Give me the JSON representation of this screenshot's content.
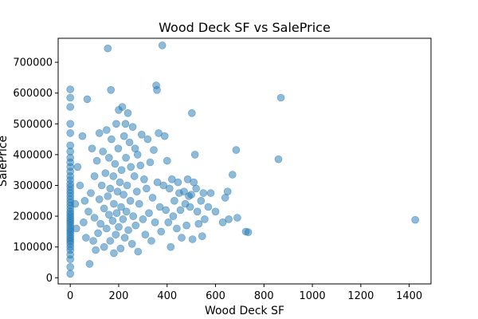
{
  "chart_data": {
    "type": "scatter",
    "title": "Wood Deck SF vs SalePrice",
    "xlabel": "Wood Deck SF",
    "ylabel": "SalePrice",
    "xlim": [
      -50,
      1490
    ],
    "ylim": [
      -20000,
      778000
    ],
    "xticks": [
      0,
      200,
      400,
      600,
      800,
      1000,
      1200,
      1400
    ],
    "yticks": [
      0,
      100000,
      200000,
      300000,
      400000,
      500000,
      600000,
      700000
    ],
    "point_color": "#1f77b4",
    "point_alpha": 0.5,
    "series": [
      {
        "points": [
          [
            0,
            13000
          ],
          [
            0,
            35000
          ],
          [
            0,
            60000
          ],
          [
            0,
            75000
          ],
          [
            0,
            90000
          ],
          [
            0,
            100000
          ],
          [
            0,
            110000
          ],
          [
            0,
            118000
          ],
          [
            0,
            125000
          ],
          [
            0,
            132000
          ],
          [
            0,
            140000
          ],
          [
            0,
            148000
          ],
          [
            0,
            155000
          ],
          [
            0,
            162000
          ],
          [
            0,
            170000
          ],
          [
            0,
            178000
          ],
          [
            0,
            185000
          ],
          [
            0,
            192000
          ],
          [
            0,
            200000
          ],
          [
            0,
            208000
          ],
          [
            0,
            215000
          ],
          [
            0,
            225000
          ],
          [
            0,
            235000
          ],
          [
            0,
            245000
          ],
          [
            0,
            255000
          ],
          [
            0,
            265000
          ],
          [
            0,
            275000
          ],
          [
            0,
            285000
          ],
          [
            0,
            295000
          ],
          [
            0,
            305000
          ],
          [
            0,
            318000
          ],
          [
            0,
            330000
          ],
          [
            0,
            345000
          ],
          [
            0,
            360000
          ],
          [
            0,
            375000
          ],
          [
            0,
            390000
          ],
          [
            0,
            410000
          ],
          [
            0,
            430000
          ],
          [
            0,
            470000
          ],
          [
            0,
            500000
          ],
          [
            0,
            555000
          ],
          [
            0,
            585000
          ],
          [
            0,
            612000
          ],
          [
            20,
            240000
          ],
          [
            25,
            160000
          ],
          [
            30,
            360000
          ],
          [
            40,
            300000
          ],
          [
            50,
            460000
          ],
          [
            55,
            180000
          ],
          [
            60,
            250000
          ],
          [
            65,
            130000
          ],
          [
            70,
            580000
          ],
          [
            75,
            215000
          ],
          [
            80,
            45000
          ],
          [
            85,
            275000
          ],
          [
            90,
            420000
          ],
          [
            95,
            120000
          ],
          [
            100,
            195000
          ],
          [
            100,
            330000
          ],
          [
            105,
            90000
          ],
          [
            110,
            380000
          ],
          [
            115,
            145000
          ],
          [
            120,
            255000
          ],
          [
            120,
            470000
          ],
          [
            125,
            175000
          ],
          [
            130,
            300000
          ],
          [
            135,
            410000
          ],
          [
            140,
            100000
          ],
          [
            140,
            225000
          ],
          [
            145,
            340000
          ],
          [
            150,
            480000
          ],
          [
            150,
            160000
          ],
          [
            155,
            745000
          ],
          [
            155,
            265000
          ],
          [
            160,
            205000
          ],
          [
            160,
            390000
          ],
          [
            165,
            120000
          ],
          [
            165,
            290000
          ],
          [
            168,
            610000
          ],
          [
            170,
            450000
          ],
          [
            175,
            185000
          ],
          [
            178,
            330000
          ],
          [
            180,
            80000
          ],
          [
            180,
            240000
          ],
          [
            185,
            370000
          ],
          [
            188,
            140000
          ],
          [
            190,
            500000
          ],
          [
            192,
            210000
          ],
          [
            195,
            280000
          ],
          [
            198,
            420000
          ],
          [
            200,
            165000
          ],
          [
            200,
            545000
          ],
          [
            205,
            310000
          ],
          [
            208,
            95000
          ],
          [
            210,
            230000
          ],
          [
            212,
            350000
          ],
          [
            215,
            555000
          ],
          [
            218,
            190000
          ],
          [
            220,
            270000
          ],
          [
            222,
            460000
          ],
          [
            225,
            130000
          ],
          [
            228,
            500000
          ],
          [
            230,
            390000
          ],
          [
            232,
            215000
          ],
          [
            235,
            300000
          ],
          [
            238,
            535000
          ],
          [
            240,
            155000
          ],
          [
            245,
            440000
          ],
          [
            248,
            250000
          ],
          [
            250,
            360000
          ],
          [
            255,
            110000
          ],
          [
            258,
            490000
          ],
          [
            260,
            200000
          ],
          [
            265,
            330000
          ],
          [
            268,
            420000
          ],
          [
            270,
            170000
          ],
          [
            275,
            280000
          ],
          [
            278,
            400000
          ],
          [
            280,
            85000
          ],
          [
            285,
            240000
          ],
          [
            290,
            365000
          ],
          [
            295,
            465000
          ],
          [
            300,
            190000
          ],
          [
            305,
            320000
          ],
          [
            310,
            140000
          ],
          [
            315,
            290000
          ],
          [
            320,
            450000
          ],
          [
            325,
            210000
          ],
          [
            330,
            375000
          ],
          [
            335,
            120000
          ],
          [
            340,
            260000
          ],
          [
            345,
            415000
          ],
          [
            350,
            180000
          ],
          [
            355,
            625000
          ],
          [
            358,
            610000
          ],
          [
            360,
            310000
          ],
          [
            365,
            470000
          ],
          [
            370,
            230000
          ],
          [
            375,
            150000
          ],
          [
            380,
            755000
          ],
          [
            385,
            300000
          ],
          [
            390,
            460000
          ],
          [
            395,
            220000
          ],
          [
            400,
            380000
          ],
          [
            405,
            180000
          ],
          [
            410,
            290000
          ],
          [
            415,
            100000
          ],
          [
            420,
            320000
          ],
          [
            425,
            200000
          ],
          [
            430,
            250000
          ],
          [
            440,
            160000
          ],
          [
            445,
            310000
          ],
          [
            450,
            275000
          ],
          [
            455,
            220000
          ],
          [
            460,
            130000
          ],
          [
            470,
            280000
          ],
          [
            475,
            240000
          ],
          [
            480,
            170000
          ],
          [
            485,
            320000
          ],
          [
            490,
            265000
          ],
          [
            495,
            230000
          ],
          [
            500,
            270000
          ],
          [
            502,
            535000
          ],
          [
            505,
            125000
          ],
          [
            510,
            310000
          ],
          [
            515,
            400000
          ],
          [
            520,
            290000
          ],
          [
            525,
            215000
          ],
          [
            530,
            175000
          ],
          [
            540,
            250000
          ],
          [
            545,
            135000
          ],
          [
            550,
            275000
          ],
          [
            555,
            190000
          ],
          [
            570,
            230000
          ],
          [
            580,
            275000
          ],
          [
            600,
            215000
          ],
          [
            630,
            180000
          ],
          [
            640,
            260000
          ],
          [
            650,
            280000
          ],
          [
            655,
            190000
          ],
          [
            670,
            335000
          ],
          [
            685,
            415000
          ],
          [
            690,
            195000
          ],
          [
            725,
            150000
          ],
          [
            735,
            148000
          ],
          [
            860,
            385000
          ],
          [
            870,
            585000
          ],
          [
            1425,
            188000
          ]
        ]
      }
    ]
  }
}
